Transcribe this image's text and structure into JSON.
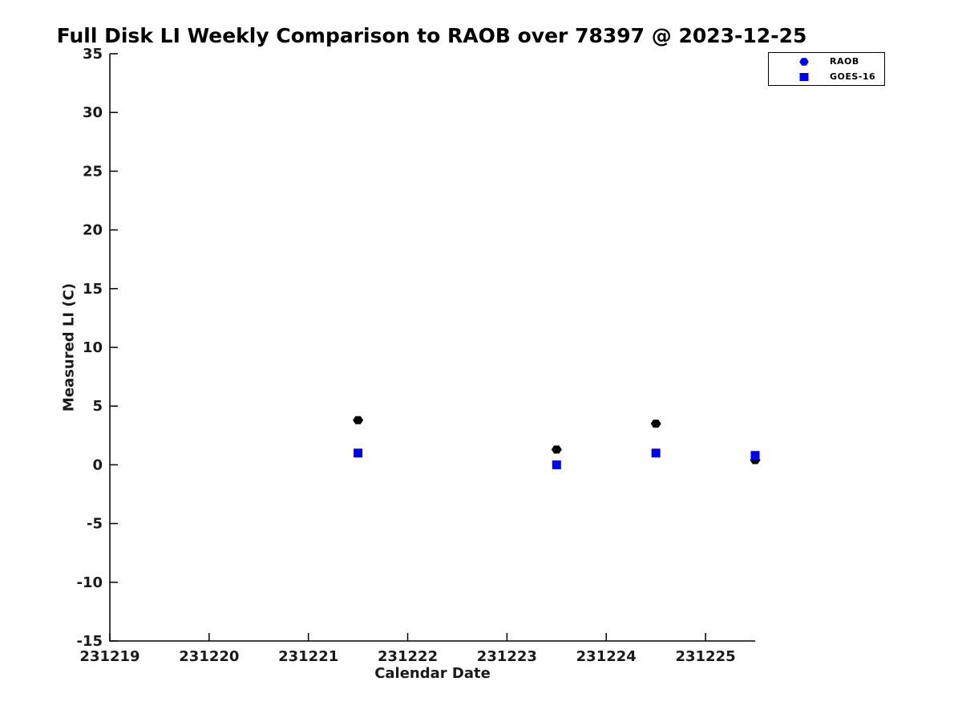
{
  "chart_data": {
    "type": "scatter",
    "title": "Full Disk LI Weekly Comparison to RAOB over 78397 @ 2023-12-25",
    "xlabel": "Calendar Date",
    "ylabel": "Measured LI (C)",
    "xlim": [
      231219,
      231225.5
    ],
    "ylim": [
      -15,
      35
    ],
    "xticks": [
      231219,
      231220,
      231221,
      231222,
      231223,
      231224,
      231225
    ],
    "yticks": [
      35,
      30,
      25,
      20,
      15,
      10,
      5,
      0,
      -5,
      -10,
      -15
    ],
    "grid": false,
    "legend_position": "top-right-outside-axes",
    "series": [
      {
        "name": "RAOB",
        "marker": "hexagram",
        "color": "#000000",
        "x": [
          231221.5,
          231223.5,
          231224.5,
          231225.5
        ],
        "y": [
          3.8,
          1.3,
          3.5,
          0.4
        ]
      },
      {
        "name": "GOES-16",
        "marker": "square",
        "color": "#0000ee",
        "x": [
          231221.5,
          231223.5,
          231224.5,
          231225.5
        ],
        "y": [
          1.0,
          0.0,
          1.0,
          0.8
        ]
      }
    ],
    "legend": {
      "marker_color": "#0000ee",
      "items": [
        {
          "label": "RAOB",
          "marker": "hexagram"
        },
        {
          "label": "GOES-16",
          "marker": "square"
        }
      ]
    }
  }
}
